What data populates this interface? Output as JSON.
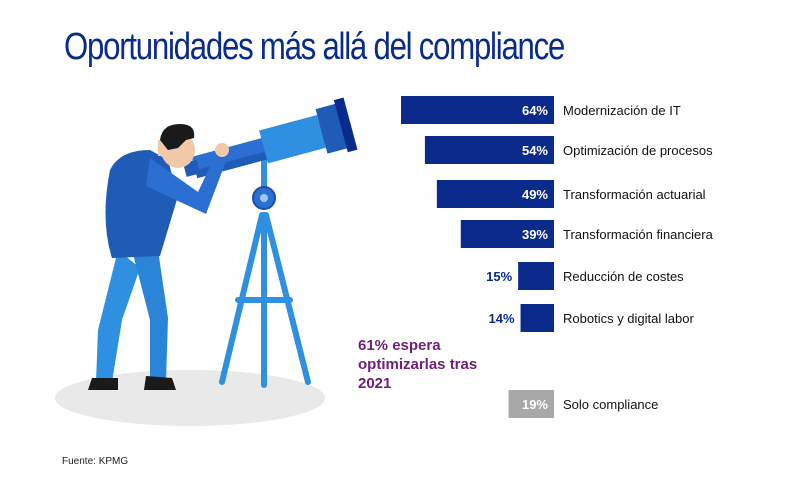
{
  "title": "Oportunidades más allá del compliance",
  "note": "61% espera optimizarlas tras 2021",
  "source": "Fuente: KPMG",
  "colors": {
    "bar_main": "#0a2a8c",
    "bar_other": "#a8a8a8",
    "title": "#0a2a8c",
    "note": "#6d1f7a",
    "figure_blue": "#2a6fd1",
    "figure_light": "#2f8fe0"
  },
  "chart_data": {
    "type": "bar",
    "orientation": "horizontal",
    "value_unit": "%",
    "xlim": [
      0,
      64
    ],
    "categories": [
      "Modernización de IT",
      "Optimización de procesos",
      "Transformación actuarial",
      "Transformación financiera",
      "Reducción de costes",
      "Robotics y  digital labor",
      "Solo compliance"
    ],
    "values": [
      64,
      54,
      49,
      39,
      15,
      14,
      19
    ],
    "labels": [
      "64%",
      "54%",
      "49%",
      "39%",
      "15%",
      "14%",
      "19%"
    ],
    "highlight": [
      false,
      false,
      false,
      false,
      false,
      false,
      true
    ]
  }
}
